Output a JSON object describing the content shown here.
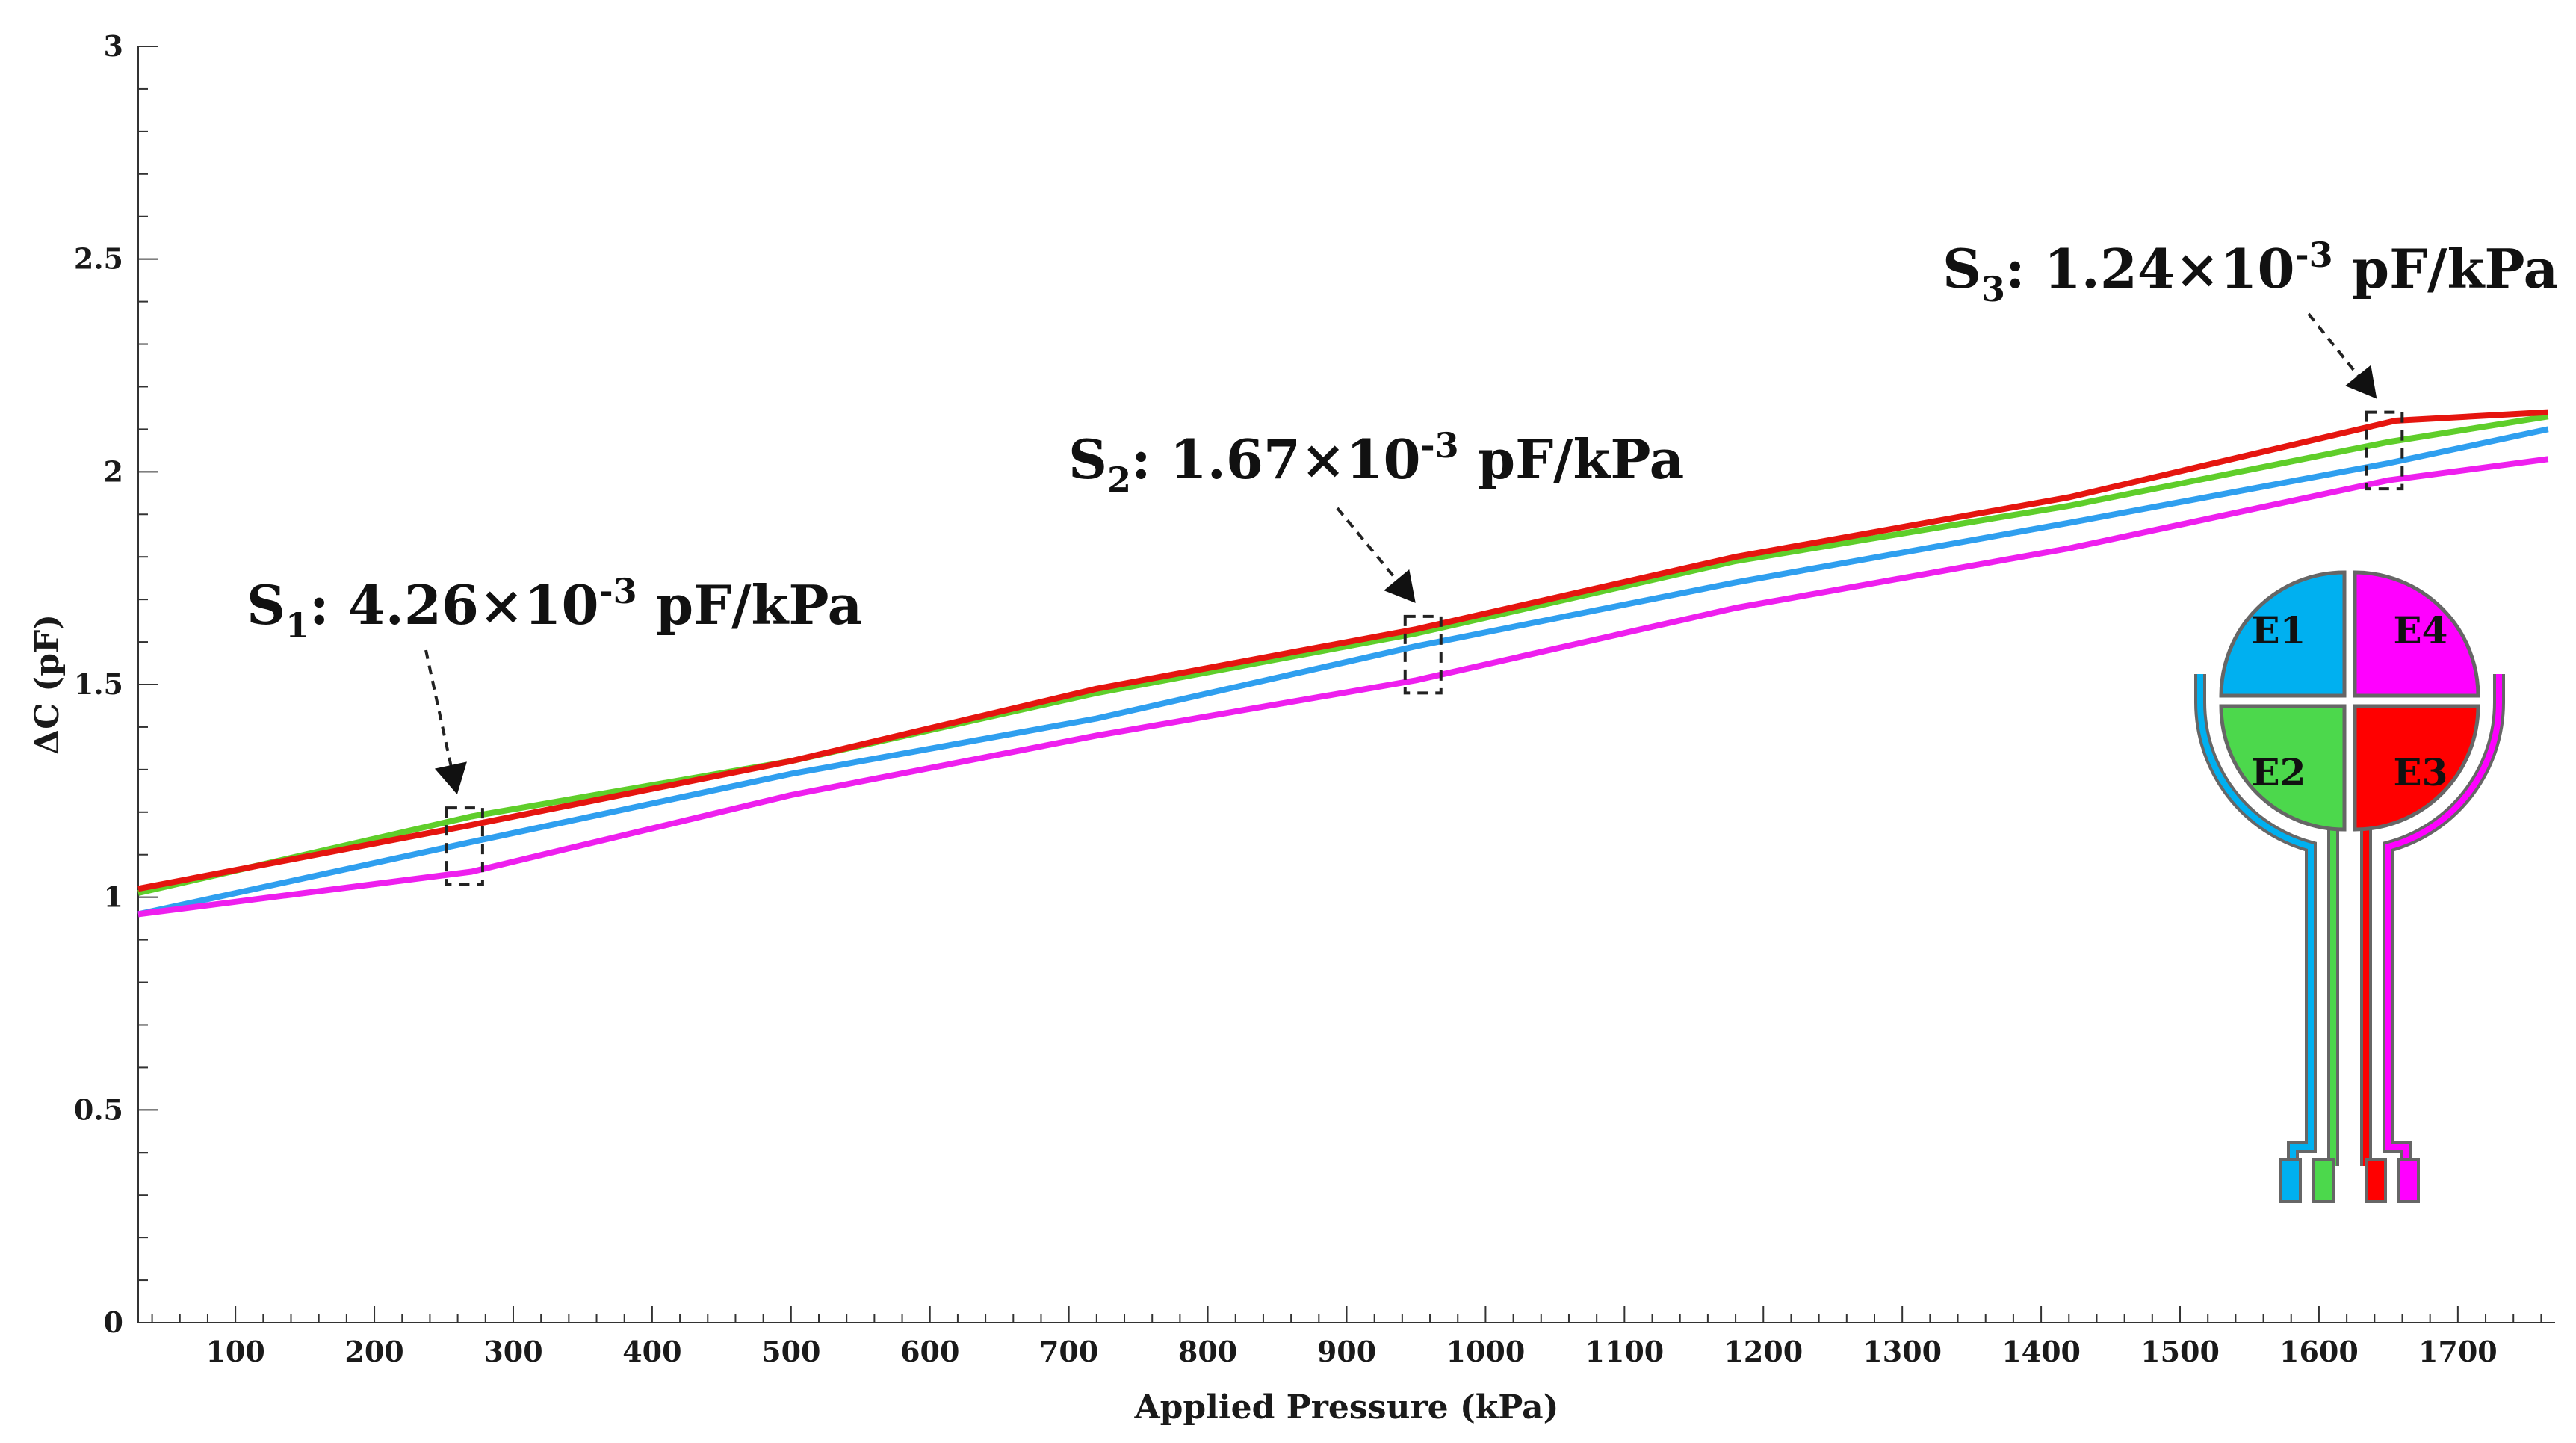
{
  "chart_data": {
    "type": "line",
    "title": "",
    "xlabel": "Applied Pressure (kPa)",
    "ylabel": "ΔC (pF)",
    "xlim": [
      30,
      1770
    ],
    "ylim": [
      0,
      3
    ],
    "x_ticks": [
      "100",
      "200",
      "300",
      "400",
      "500",
      "600",
      "700",
      "800",
      "900",
      "1000",
      "1100",
      "1200",
      "1300",
      "1400",
      "1500",
      "1600",
      "1700"
    ],
    "y_ticks": [
      "0",
      "0.5",
      "1",
      "1.5",
      "2",
      "2.5",
      "3"
    ],
    "series": [
      {
        "name": "E1",
        "color": "#2f9fef",
        "x": [
          30,
          270,
          500,
          720,
          950,
          1180,
          1420,
          1650,
          1765
        ],
        "y": [
          0.96,
          1.13,
          1.29,
          1.42,
          1.59,
          1.74,
          1.88,
          2.02,
          2.1
        ]
      },
      {
        "name": "E2",
        "color": "#5fce2a",
        "x": [
          30,
          270,
          500,
          720,
          950,
          1180,
          1420,
          1650,
          1765
        ],
        "y": [
          1.01,
          1.19,
          1.32,
          1.48,
          1.62,
          1.79,
          1.92,
          2.07,
          2.13
        ]
      },
      {
        "name": "E3",
        "color": "#e5150f",
        "x": [
          30,
          270,
          500,
          720,
          950,
          1180,
          1420,
          1655,
          1765
        ],
        "y": [
          1.02,
          1.17,
          1.32,
          1.49,
          1.63,
          1.8,
          1.94,
          2.12,
          2.14
        ]
      },
      {
        "name": "E4",
        "color": "#ee1fee",
        "x": [
          30,
          270,
          500,
          720,
          950,
          1180,
          1420,
          1650,
          1765
        ],
        "y": [
          0.96,
          1.06,
          1.24,
          1.38,
          1.51,
          1.68,
          1.82,
          1.98,
          2.03
        ]
      }
    ],
    "annotations": [
      {
        "label": "S",
        "sub": "1",
        "text": ": 4.26×10",
        "sup": "-3",
        "unit": " pF/kPa",
        "x": 265,
        "y_low": 1.03,
        "y_high": 1.21
      },
      {
        "label": "S",
        "sub": "2",
        "text": ": 1.67×10",
        "sup": "-3",
        "unit": " pF/kPa",
        "x": 955,
        "y_low": 1.48,
        "y_high": 1.66
      },
      {
        "label": "S",
        "sub": "3",
        "text": ": 1.24×10",
        "sup": "-3",
        "unit": " pF/kPa",
        "x": 1647,
        "y_low": 1.96,
        "y_high": 2.14
      }
    ]
  },
  "sensor": {
    "electrodes": [
      {
        "label": "E1",
        "color": "#00b0f0"
      },
      {
        "label": "E4",
        "color": "#ff00ff"
      },
      {
        "label": "E2",
        "color": "#4cd84c"
      },
      {
        "label": "E3",
        "color": "#ff0000"
      }
    ],
    "outline_color": "#666666"
  }
}
